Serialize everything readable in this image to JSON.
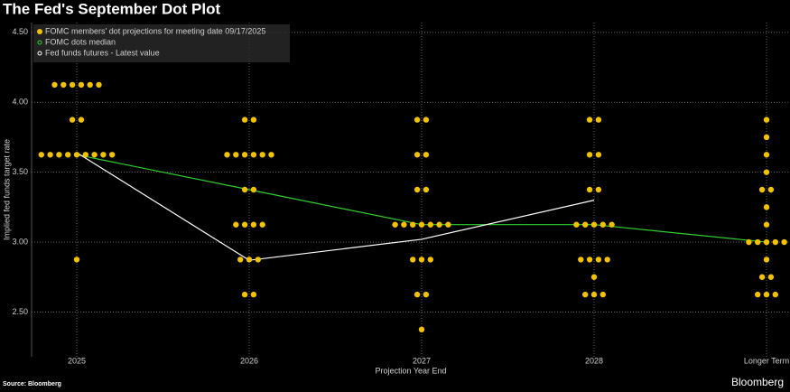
{
  "chart_data": {
    "type": "dot_plot",
    "title": "The Fed's September Dot Plot",
    "y_label": "Implied fed funds target rate",
    "x_label": "Projection Year End",
    "source": "Source: Bloomberg",
    "brand": "Bloomberg",
    "categories": [
      "2025",
      "2026",
      "2027",
      "2028",
      "Longer Term"
    ],
    "ylim": [
      2.18,
      4.57
    ],
    "yticks": [
      {
        "value": 2.5,
        "label": "2.50"
      },
      {
        "value": 3,
        "label": "3.00"
      },
      {
        "value": 3.5,
        "label": "3.50"
      },
      {
        "value": 4,
        "label": "4.00"
      },
      {
        "value": 4.5,
        "label": "4.50"
      }
    ],
    "grid": true,
    "legend": "top-left",
    "series": [
      {
        "name": "FOMC members' dot projections for meeting date 09/17/2025",
        "type": "dots",
        "color": "#f2c200",
        "values": [
          [
            4.125,
            4.125,
            4.125,
            4.125,
            4.125,
            4.125,
            3.875,
            3.875,
            3.625,
            3.625,
            3.625,
            3.625,
            3.625,
            3.625,
            3.625,
            3.625,
            3.625,
            2.875
          ],
          [
            3.875,
            3.875,
            3.625,
            3.625,
            3.625,
            3.625,
            3.625,
            3.625,
            3.375,
            3.375,
            3.125,
            3.125,
            3.125,
            3.125,
            2.875,
            2.875,
            2.875,
            2.625,
            2.625
          ],
          [
            3.875,
            3.875,
            3.625,
            3.625,
            3.375,
            3.375,
            3.125,
            3.125,
            3.125,
            3.125,
            3.125,
            3.125,
            3.125,
            2.875,
            2.875,
            2.875,
            2.625,
            2.625,
            2.375
          ],
          [
            3.875,
            3.875,
            3.625,
            3.625,
            3.375,
            3.375,
            3.125,
            3.125,
            3.125,
            3.125,
            3.125,
            2.875,
            2.875,
            2.875,
            2.875,
            2.75,
            2.625,
            2.625,
            2.625
          ],
          [
            3.875,
            3.75,
            3.625,
            3.5,
            3.375,
            3.375,
            3.25,
            3.125,
            3,
            3,
            3,
            3,
            3,
            2.875,
            2.75,
            2.75,
            2.625,
            2.625,
            2.625
          ]
        ]
      },
      {
        "name": "FOMC dots median",
        "type": "line",
        "color": "#2fd02f",
        "values": [
          3.625,
          3.375,
          3.125,
          3.125,
          3.0
        ]
      },
      {
        "name": "Fed funds futures - Latest value",
        "type": "line",
        "color": "#ffffff",
        "values": [
          3.64,
          2.87,
          3.02,
          3.3,
          null
        ]
      }
    ]
  }
}
